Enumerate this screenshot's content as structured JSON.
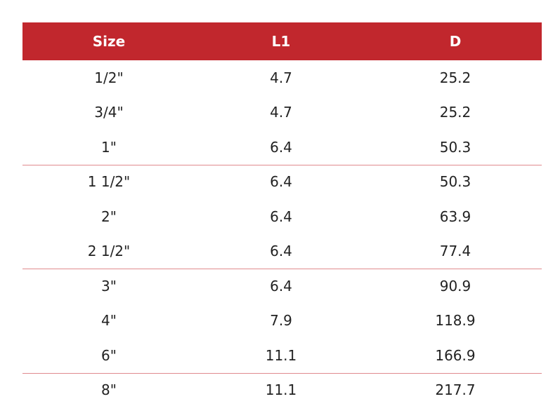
{
  "table": {
    "header": [
      "Size",
      "L1",
      "D"
    ],
    "rows": [
      [
        "1/2\"",
        "4.7",
        "25.2"
      ],
      [
        "3/4\"",
        "4.7",
        "25.2"
      ],
      [
        "1\"",
        "6.4",
        "50.3"
      ],
      [
        "1 1/2\"",
        "6.4",
        "50.3"
      ],
      [
        "2\"",
        "6.4",
        "63.9"
      ],
      [
        "2 1/2\"",
        "6.4",
        "77.4"
      ],
      [
        "3\"",
        "6.4",
        "90.9"
      ],
      [
        "4\"",
        "7.9",
        "118.9"
      ],
      [
        "6\"",
        "11.1",
        "166.9"
      ],
      [
        "8\"",
        "11.1",
        "217.7"
      ]
    ]
  }
}
